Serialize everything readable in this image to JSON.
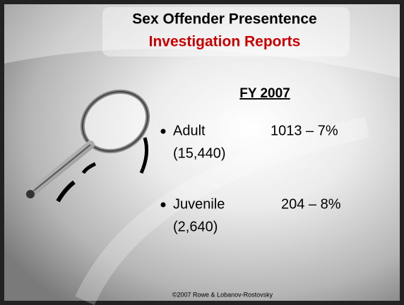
{
  "title": {
    "line1": "Sex Offender Presentence",
    "line2": "Investigation Reports"
  },
  "heading": "FY 2007",
  "items": [
    {
      "label": "Adult",
      "figure": "1013 – 7%",
      "total": "(15,440)"
    },
    {
      "label": "Juvenile",
      "figure": "204 – 8%",
      "total": "(2,640)"
    }
  ],
  "footer": "©2007 Rowe & Lobanov-Rostovsky"
}
